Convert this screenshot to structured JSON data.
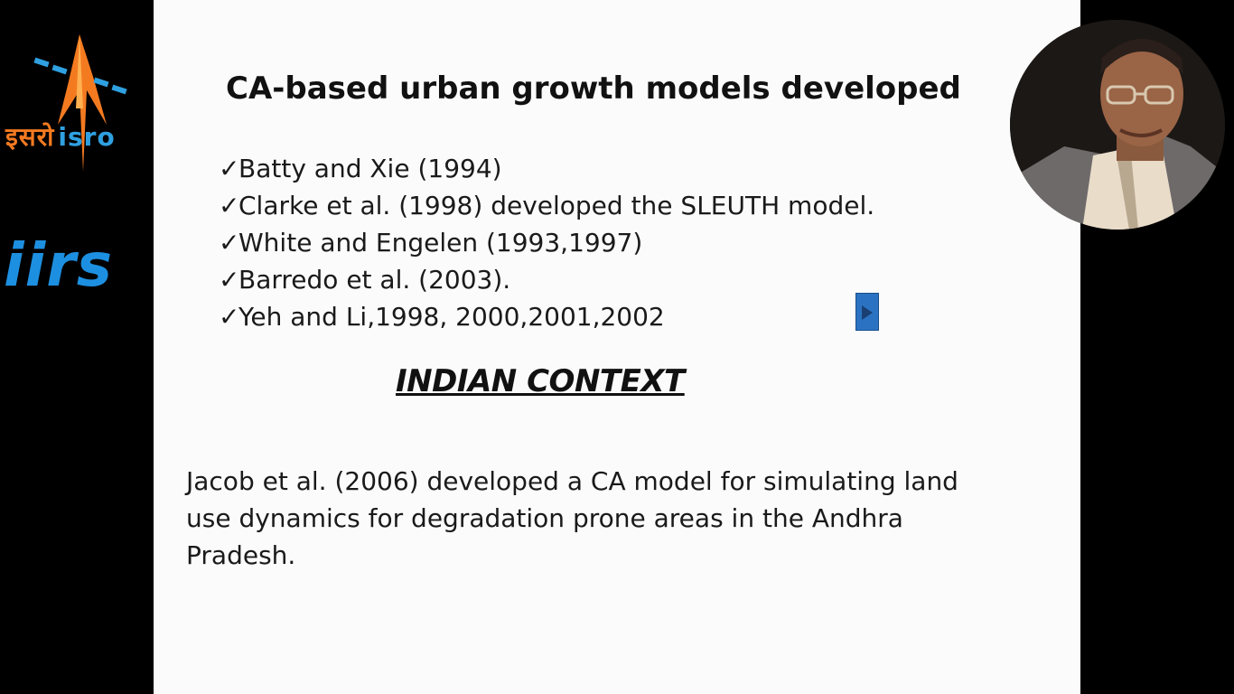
{
  "logos": {
    "isro_hindi": "इसरो",
    "isro_english": "isro",
    "iirs": "iirs"
  },
  "slide": {
    "title": "CA-based urban growth models developed",
    "check_glyph": "✓",
    "references": [
      "Batty and Xie (1994)",
      "Clarke et al. (1998) developed the SLEUTH model.",
      "White and Engelen (1993,1997)",
      "Barredo et al. (2003).",
      "Yeh and Li,1998, 2000,2001,2002"
    ],
    "section_heading": "INDIAN CONTEXT",
    "paragraph": "Jacob et al. (2006) developed a CA model for simulating land use dynamics for degradation prone areas in the Andhra Pradesh."
  },
  "icons": {
    "nav": "play-forward-icon",
    "presenter": "presenter-video-icon"
  },
  "colors": {
    "background": "#000000",
    "slide_bg": "#fbfbfb",
    "isro_orange": "#f47a20",
    "isro_blue": "#2fa0e0",
    "iirs_blue": "#1d8fe0",
    "nav_button": "#2b73c2"
  }
}
